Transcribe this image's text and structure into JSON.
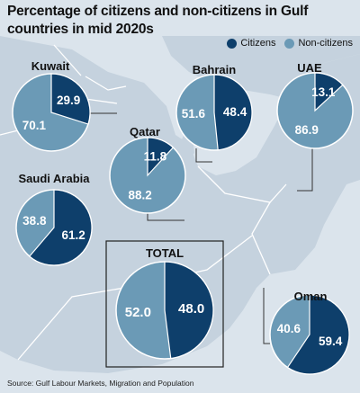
{
  "title": "Percentage of citizens and non-citizens in Gulf countries in mid 2020s",
  "legend": [
    {
      "label": "Citizens",
      "color": "#0e3f6b"
    },
    {
      "label": "Non-citizens",
      "color": "#6b9ab6"
    }
  ],
  "source": "Source: Gulf Labour Markets, Migration and Population",
  "colors": {
    "citizens": "#0e3f6b",
    "non_citizens": "#6b9ab6",
    "land": "#c5d2de",
    "sea": "#dbe4ec",
    "border": "#ffffff",
    "connector": "#333333"
  },
  "chart_data": [
    {
      "type": "pie",
      "title": "Kuwait",
      "categories": [
        "Citizens",
        "Non-citizens"
      ],
      "values": [
        29.9,
        70.1
      ]
    },
    {
      "type": "pie",
      "title": "Bahrain",
      "categories": [
        "Citizens",
        "Non-citizens"
      ],
      "values": [
        48.4,
        51.6
      ]
    },
    {
      "type": "pie",
      "title": "UAE",
      "categories": [
        "Citizens",
        "Non-citizens"
      ],
      "values": [
        13.1,
        86.9
      ]
    },
    {
      "type": "pie",
      "title": "Qatar",
      "categories": [
        "Citizens",
        "Non-citizens"
      ],
      "values": [
        11.8,
        88.2
      ]
    },
    {
      "type": "pie",
      "title": "Saudi Arabia",
      "categories": [
        "Citizens",
        "Non-citizens"
      ],
      "values": [
        61.2,
        38.8
      ]
    },
    {
      "type": "pie",
      "title": "TOTAL",
      "categories": [
        "Citizens",
        "Non-citizens"
      ],
      "values": [
        48.0,
        52.0
      ]
    },
    {
      "type": "pie",
      "title": "Oman",
      "categories": [
        "Citizens",
        "Non-citizens"
      ],
      "values": [
        59.4,
        40.6
      ]
    }
  ]
}
